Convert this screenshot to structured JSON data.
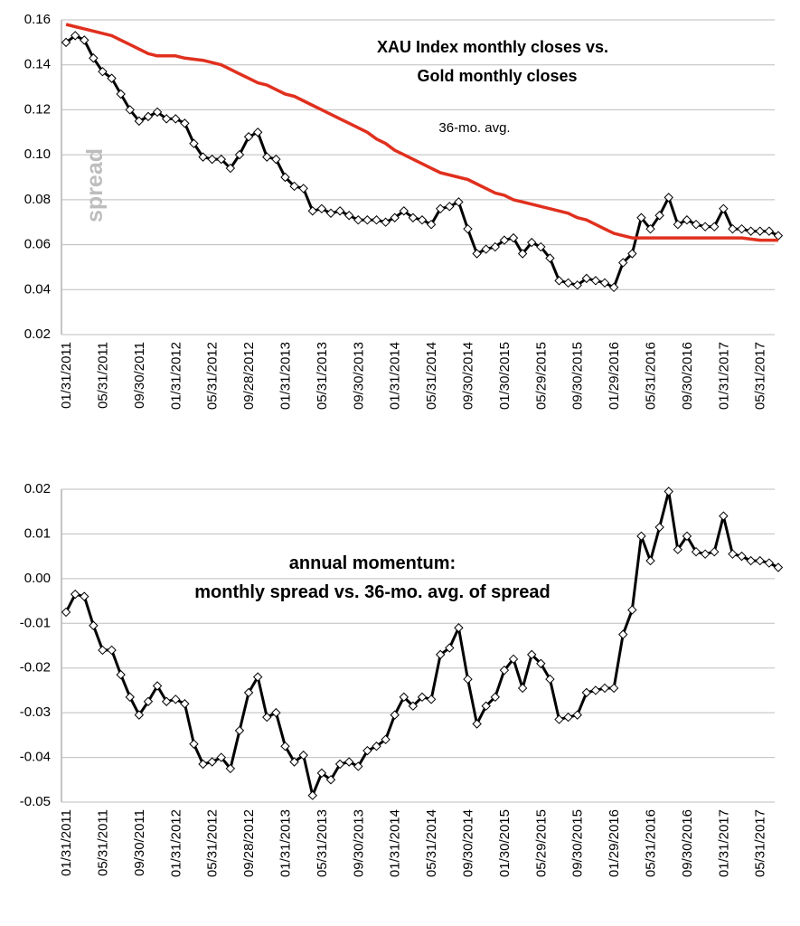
{
  "chart_data": [
    {
      "type": "line",
      "title": [
        "XAU Index monthly closes vs.",
        "Gold monthly closes"
      ],
      "categories": [
        "01/31/2011",
        null,
        null,
        null,
        "05/31/2011",
        null,
        null,
        null,
        "09/30/2011",
        null,
        null,
        null,
        "01/31/2012",
        null,
        null,
        null,
        "05/31/2012",
        null,
        null,
        null,
        "09/28/2012",
        null,
        null,
        null,
        "01/31/2013",
        null,
        null,
        null,
        "05/31/2013",
        null,
        null,
        null,
        "09/30/2013",
        null,
        null,
        null,
        "01/31/2014",
        null,
        null,
        null,
        "05/31/2014",
        null,
        null,
        null,
        "09/30/2014",
        null,
        null,
        null,
        "01/30/2015",
        null,
        null,
        null,
        "05/29/2015",
        null,
        null,
        null,
        "09/30/2015",
        null,
        null,
        null,
        "01/29/2016",
        null,
        null,
        null,
        "05/31/2016",
        null,
        null,
        null,
        "09/30/2016",
        null,
        null,
        null,
        "01/31/2017",
        null,
        null,
        null,
        "05/31/2017",
        null,
        null
      ],
      "series": [
        {
          "name": "spread",
          "color": "#000000",
          "markers": true,
          "values": [
            0.15,
            0.153,
            0.151,
            0.143,
            0.137,
            0.134,
            0.127,
            0.12,
            0.115,
            0.117,
            0.119,
            0.116,
            0.116,
            0.114,
            0.105,
            0.099,
            0.098,
            0.098,
            0.094,
            0.1,
            0.108,
            0.11,
            0.099,
            0.098,
            0.09,
            0.086,
            0.085,
            0.075,
            0.076,
            0.074,
            0.075,
            0.073,
            0.071,
            0.071,
            0.071,
            0.07,
            0.072,
            0.075,
            0.072,
            0.071,
            0.069,
            0.076,
            0.077,
            0.079,
            0.067,
            0.056,
            0.058,
            0.059,
            0.062,
            0.063,
            0.056,
            0.061,
            0.059,
            0.054,
            0.044,
            0.043,
            0.042,
            0.045,
            0.044,
            0.043,
            0.041,
            0.052,
            0.056,
            0.072,
            0.067,
            0.073,
            0.081,
            0.069,
            0.071,
            0.069,
            0.068,
            0.068,
            0.076,
            0.067,
            0.067,
            0.066,
            0.066,
            0.066,
            0.064
          ]
        },
        {
          "name": "36-mo. avg.",
          "color": "#e0301e",
          "markers": false,
          "values": [
            0.158,
            0.157,
            0.156,
            0.155,
            0.154,
            0.153,
            0.151,
            0.149,
            0.147,
            0.145,
            0.144,
            0.144,
            0.144,
            0.143,
            0.1425,
            0.142,
            0.141,
            0.14,
            0.138,
            0.136,
            0.134,
            0.132,
            0.131,
            0.129,
            0.127,
            0.126,
            0.124,
            0.122,
            0.12,
            0.118,
            0.116,
            0.114,
            0.112,
            0.11,
            0.107,
            0.105,
            0.102,
            0.1,
            0.098,
            0.096,
            0.094,
            0.092,
            0.091,
            0.09,
            0.089,
            0.087,
            0.085,
            0.083,
            0.082,
            0.08,
            0.079,
            0.078,
            0.077,
            0.076,
            0.075,
            0.074,
            0.072,
            0.071,
            0.069,
            0.067,
            0.065,
            0.064,
            0.063,
            0.063,
            0.063,
            0.063,
            0.063,
            0.063,
            0.063,
            0.063,
            0.063,
            0.063,
            0.063,
            0.063,
            0.063,
            0.0625,
            0.062,
            0.062,
            0.062
          ]
        }
      ],
      "ylim": [
        0.02,
        0.16
      ],
      "yticks": [
        0.02,
        0.04,
        0.06,
        0.08,
        {
          "value": 0.1,
          "label": "0.10"
        },
        0.12,
        0.14,
        0.16
      ],
      "grid": true
    },
    {
      "type": "line",
      "title": [
        "annual momentum:",
        "monthly spread vs. 36-mo. avg. of spread"
      ],
      "categories": [
        "01/31/2011",
        null,
        null,
        null,
        "05/31/2011",
        null,
        null,
        null,
        "09/30/2011",
        null,
        null,
        null,
        "01/31/2012",
        null,
        null,
        null,
        "05/31/2012",
        null,
        null,
        null,
        "09/28/2012",
        null,
        null,
        null,
        "01/31/2013",
        null,
        null,
        null,
        "05/31/2013",
        null,
        null,
        null,
        "09/30/2013",
        null,
        null,
        null,
        "01/31/2014",
        null,
        null,
        null,
        "05/31/2014",
        null,
        null,
        null,
        "09/30/2014",
        null,
        null,
        null,
        "01/30/2015",
        null,
        null,
        null,
        "05/29/2015",
        null,
        null,
        null,
        "09/30/2015",
        null,
        null,
        null,
        "01/29/2016",
        null,
        null,
        null,
        "05/31/2016",
        null,
        null,
        null,
        "09/30/2016",
        null,
        null,
        null,
        "01/31/2017",
        null,
        null,
        null,
        "05/31/2017",
        null,
        null
      ],
      "series": [
        {
          "color": "#000000",
          "markers": true,
          "values": [
            -0.0075,
            -0.0035,
            -0.004,
            -0.0105,
            -0.016,
            -0.016,
            -0.0215,
            -0.0265,
            -0.0305,
            -0.0275,
            -0.024,
            -0.0275,
            -0.027,
            -0.028,
            -0.037,
            -0.0415,
            -0.041,
            -0.04,
            -0.0425,
            -0.034,
            -0.0255,
            -0.022,
            -0.031,
            -0.03,
            -0.0375,
            -0.041,
            -0.0395,
            -0.0485,
            -0.0435,
            -0.045,
            -0.0415,
            -0.041,
            -0.042,
            -0.0385,
            -0.0375,
            -0.036,
            -0.0305,
            -0.0265,
            -0.0285,
            -0.0265,
            -0.027,
            -0.017,
            -0.0155,
            -0.011,
            -0.0225,
            -0.0325,
            -0.0285,
            -0.0265,
            -0.0205,
            -0.018,
            -0.0245,
            -0.017,
            -0.019,
            -0.0225,
            -0.0315,
            -0.031,
            -0.0305,
            -0.0255,
            -0.025,
            -0.0245,
            -0.0245,
            -0.0125,
            -0.007,
            0.0095,
            0.004,
            0.0115,
            0.0195,
            0.0065,
            0.0095,
            0.006,
            0.0055,
            0.006,
            0.014,
            0.0055,
            0.005,
            0.004,
            0.004,
            0.0035,
            0.0025
          ]
        }
      ],
      "ylim": [
        -0.05,
        0.02
      ],
      "yticks": [
        -0.05,
        -0.04,
        -0.03,
        -0.02,
        -0.01,
        {
          "value": 0,
          "label": "0.00"
        },
        0.01,
        0.02
      ],
      "grid": true
    }
  ]
}
